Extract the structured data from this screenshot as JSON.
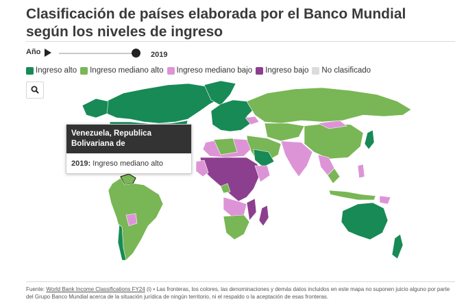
{
  "title": "Clasificación de países elaborada por el Banco Mundial según los niveles de ingreso",
  "controls": {
    "year_label": "Año",
    "year_value": "2019",
    "slider_fraction": 1.0
  },
  "legend": [
    {
      "label": "Ingreso alto",
      "color": "#178a55"
    },
    {
      "label": "Ingreso mediano alto",
      "color": "#79b655"
    },
    {
      "label": "Ingreso mediano bajo",
      "color": "#dd94d6"
    },
    {
      "label": "Ingreso bajo",
      "color": "#8d3f8f"
    },
    {
      "label": "No clasificado",
      "color": "#dcdcdc"
    }
  ],
  "tooltip": {
    "country": "Venezuela, Republica Bolivariana de",
    "year": "2019:",
    "value": "Ingreso mediano alto"
  },
  "icons": {
    "search": "search-icon",
    "play": "play-icon"
  },
  "footer": {
    "prefix": "Fuente:",
    "source_link": "World Bank Income Classifications FY24",
    "info_mark": "(i)",
    "disclaimer": "• Las fronteras, los colores, las denominaciones y demás datos incluidos en este mapa no suponen juicio alguno por parte del Grupo Banco Mundial acerca de la situación jurídica de ningún territorio, ni el respaldo o la aceptación de esas fronteras."
  }
}
